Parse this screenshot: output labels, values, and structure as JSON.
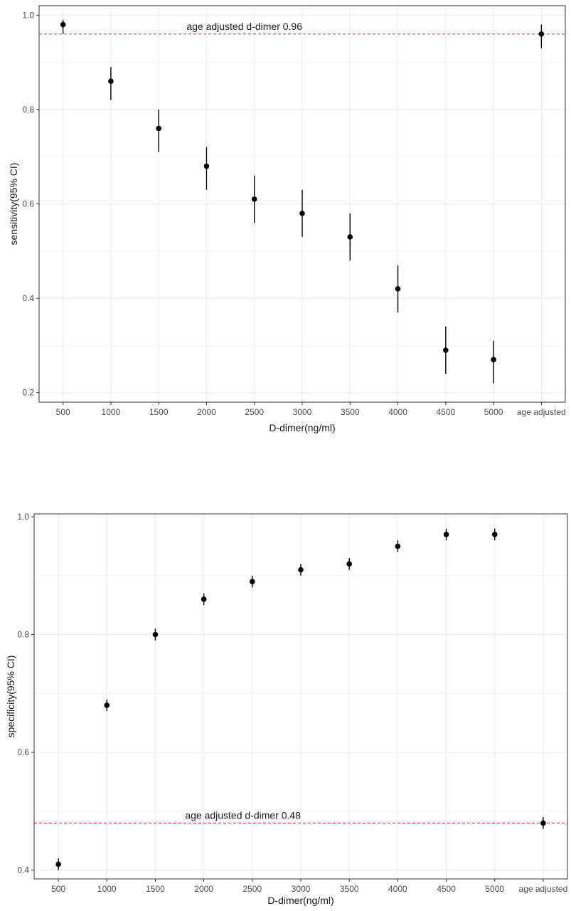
{
  "chart_data": [
    {
      "type": "scatter",
      "title": "",
      "xlabel": "D-dimer(ng/ml)",
      "ylabel": "sensitivity(95% CI)",
      "categories": [
        "500",
        "1000",
        "1500",
        "2000",
        "2500",
        "3000",
        "3500",
        "4000",
        "4500",
        "5000",
        "age adjusted"
      ],
      "values": [
        0.98,
        0.86,
        0.76,
        0.68,
        0.61,
        0.58,
        0.53,
        0.42,
        0.29,
        0.27,
        0.96
      ],
      "ci_lower": [
        0.96,
        0.82,
        0.71,
        0.63,
        0.56,
        0.53,
        0.48,
        0.37,
        0.24,
        0.22,
        0.93
      ],
      "ci_upper": [
        0.99,
        0.89,
        0.8,
        0.72,
        0.66,
        0.63,
        0.58,
        0.47,
        0.34,
        0.31,
        0.98
      ],
      "ylim": [
        0.18,
        1.02
      ],
      "yticks": [
        0.2,
        0.4,
        0.6,
        0.8,
        1.0
      ],
      "ytick_labels": [
        "0.2",
        "0.4",
        "0.6",
        "0.8",
        "1.0"
      ],
      "grid": true,
      "reference_line": {
        "value": 0.96,
        "color": "#e0403a",
        "style": "dashed",
        "label": "age adjusted d-dimer 0.96"
      },
      "point_color": "#000000"
    },
    {
      "type": "scatter",
      "title": "",
      "xlabel": "D-dimer(ng/ml)",
      "ylabel": "specificity(95% CI)",
      "categories": [
        "500",
        "1000",
        "1500",
        "2000",
        "2500",
        "3000",
        "3500",
        "4000",
        "4500",
        "5000",
        "age adjusted"
      ],
      "values": [
        0.41,
        0.68,
        0.8,
        0.86,
        0.89,
        0.91,
        0.92,
        0.95,
        0.97,
        0.97,
        0.48
      ],
      "ci_lower": [
        0.4,
        0.67,
        0.79,
        0.85,
        0.88,
        0.9,
        0.91,
        0.94,
        0.96,
        0.96,
        0.47
      ],
      "ci_upper": [
        0.42,
        0.69,
        0.81,
        0.87,
        0.9,
        0.92,
        0.93,
        0.96,
        0.98,
        0.98,
        0.49
      ],
      "ylim": [
        0.385,
        1.005
      ],
      "yticks": [
        0.4,
        0.6,
        0.8,
        1.0
      ],
      "ytick_labels": [
        "0.4",
        "0.6",
        "0.8",
        "1.0"
      ],
      "grid": true,
      "reference_line": {
        "value": 0.48,
        "color": "#e0403a",
        "style": "dashed",
        "label": "age adjusted d-dimer 0.48"
      },
      "point_color": "#000000"
    }
  ]
}
